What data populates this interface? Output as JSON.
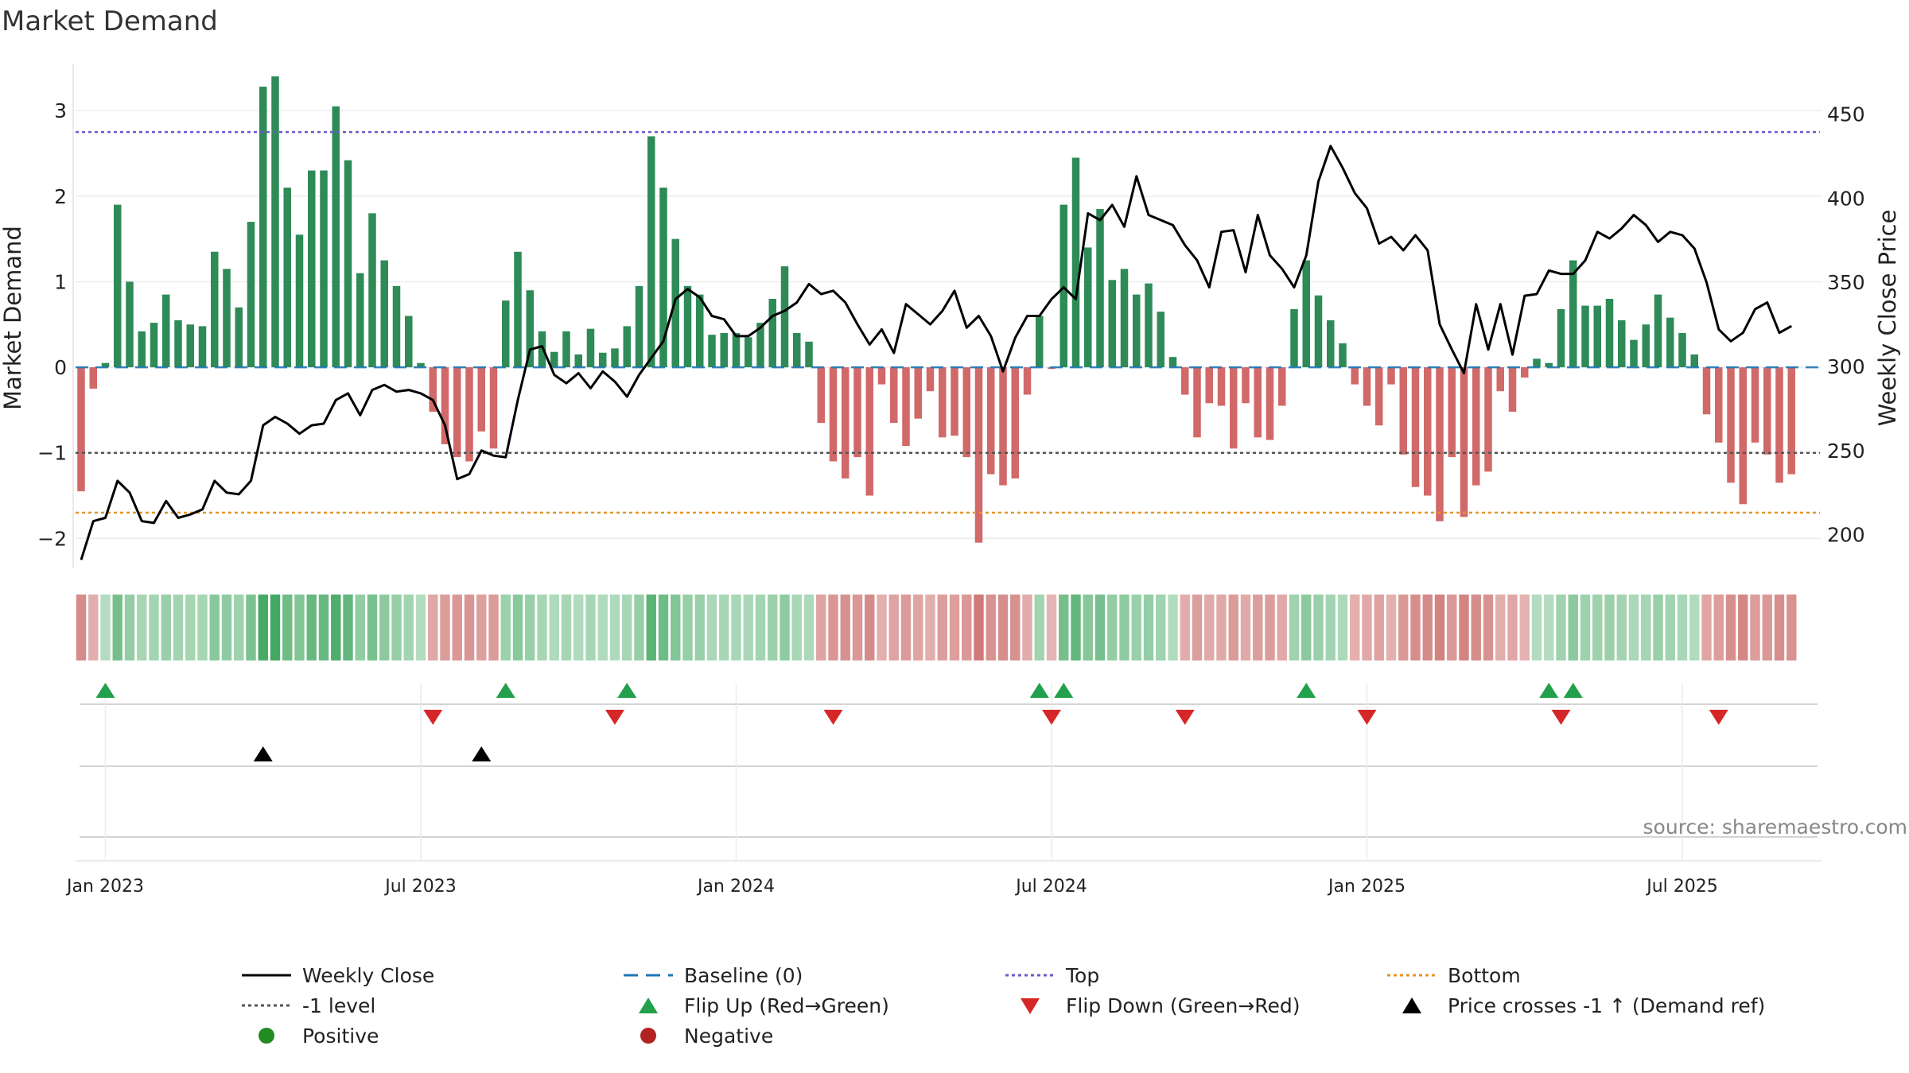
{
  "chart_data": {
    "type": "bar",
    "title": "Market Demand",
    "ylabel": "Market Demand",
    "y2label": "Weekly Close Price",
    "ylim": [
      -2.35,
      3.55
    ],
    "y2lim": [
      180,
      480
    ],
    "yticks": [
      -2,
      -1,
      0,
      1,
      2,
      3
    ],
    "yticklabels": [
      "−2",
      "−1",
      "0",
      "1",
      "2",
      "3"
    ],
    "y2ticks": [
      200,
      250,
      300,
      350,
      400,
      450
    ],
    "y2ticklabels": [
      "200",
      "250",
      "300",
      "350",
      "400",
      "450"
    ],
    "xticks": [
      2,
      28,
      54,
      80,
      106,
      132
    ],
    "xticklabels": [
      "Jan 2023",
      "Jul 2023",
      "Jan 2024",
      "Jul 2024",
      "Jan 2025",
      "Jul 2025"
    ],
    "reference_lines": {
      "baseline": 0,
      "top": 2.75,
      "bottom": -1.7,
      "minus_one": -1
    },
    "colors": {
      "positive": "#2e8b57",
      "negative": "#cd5c5c",
      "top": "#6a5acd",
      "bottom": "#e69528",
      "baseline": "#1f77b4",
      "minus_one": "#555555",
      "flip_up": "#22a04b",
      "flip_down": "#d62728",
      "cross": "#000000",
      "close": "#000000"
    },
    "demand": [
      -1.45,
      -0.25,
      0.05,
      1.9,
      1.0,
      0.42,
      0.52,
      0.85,
      0.55,
      0.5,
      0.48,
      1.35,
      1.15,
      0.7,
      1.7,
      3.28,
      3.4,
      2.1,
      1.55,
      2.3,
      2.3,
      3.05,
      2.42,
      1.1,
      1.8,
      1.25,
      0.95,
      0.6,
      0.05,
      -0.52,
      -0.9,
      -1.05,
      -1.1,
      -0.75,
      -0.95,
      0.78,
      1.35,
      0.9,
      0.42,
      0.18,
      0.42,
      0.15,
      0.45,
      0.17,
      0.22,
      0.48,
      0.95,
      2.7,
      2.1,
      1.5,
      0.95,
      0.85,
      0.38,
      0.4,
      0.4,
      0.35,
      0.52,
      0.8,
      1.18,
      0.4,
      0.3,
      -0.65,
      -1.1,
      -1.3,
      -1.05,
      -1.5,
      -0.2,
      -0.65,
      -0.92,
      -0.6,
      -0.28,
      -0.82,
      -0.8,
      -1.05,
      -2.05,
      -1.25,
      -1.38,
      -1.3,
      -0.32,
      0.6,
      -0.02,
      1.9,
      2.45,
      1.4,
      1.85,
      1.02,
      1.15,
      0.85,
      0.98,
      0.65,
      0.12,
      -0.32,
      -0.82,
      -0.42,
      -0.45,
      -0.95,
      -0.42,
      -0.82,
      -0.85,
      -0.45,
      0.68,
      1.25,
      0.84,
      0.55,
      0.28,
      -0.2,
      -0.45,
      -0.68,
      -0.2,
      -1.02,
      -1.4,
      -1.5,
      -1.8,
      -1.05,
      -1.75,
      -1.38,
      -1.22,
      -0.28,
      -0.52,
      -0.12,
      0.1,
      0.05,
      0.68,
      1.25,
      0.72,
      0.72,
      0.8,
      0.55,
      0.32,
      0.5,
      0.85,
      0.58,
      0.4,
      0.15,
      -0.55,
      -0.88,
      -1.35,
      -1.6,
      -0.88,
      -1.02,
      -1.35,
      -1.25
    ],
    "close": [
      185,
      208,
      210,
      232,
      225,
      208,
      207,
      220,
      210,
      212,
      215,
      232,
      225,
      224,
      232,
      265,
      270,
      266,
      260,
      265,
      266,
      280,
      284,
      271,
      286,
      289,
      285,
      286,
      284,
      280,
      265,
      233,
      236,
      250,
      247,
      246,
      280,
      310,
      312,
      295,
      290,
      296,
      287,
      297,
      291,
      282,
      295,
      305,
      315,
      340,
      346,
      341,
      330,
      328,
      318,
      318,
      323,
      330,
      333,
      338,
      349,
      343,
      345,
      338,
      325,
      313,
      322,
      308,
      337,
      331,
      325,
      333,
      345,
      323,
      330,
      318,
      297,
      317,
      330,
      330,
      340,
      347,
      340,
      391,
      387,
      396,
      383,
      413,
      390,
      387,
      384,
      372,
      363,
      347,
      380,
      381,
      356,
      390,
      366,
      358,
      347,
      366,
      410,
      431,
      418,
      403,
      394,
      373,
      377,
      369,
      378,
      369,
      325,
      310,
      296,
      337,
      310,
      337,
      307,
      342,
      343,
      357,
      355,
      355,
      363,
      380,
      376,
      382,
      390,
      384,
      374,
      380,
      378,
      370,
      350,
      322,
      315,
      320,
      334,
      338,
      320,
      324
    ],
    "flip_up_idx": [
      2,
      35,
      45,
      79,
      81,
      101,
      121,
      123
    ],
    "flip_down_idx": [
      29,
      44,
      62,
      80,
      91,
      106,
      122,
      135
    ],
    "cross_idx": [
      15,
      33
    ],
    "source": "source: sharemaestro.com",
    "legend": [
      [
        {
          "key": "weekly_close",
          "label": "Weekly Close"
        },
        {
          "key": "baseline",
          "label": "Baseline (0)"
        },
        {
          "key": "top",
          "label": "Top"
        },
        {
          "key": "bottom",
          "label": "Bottom"
        }
      ],
      [
        {
          "key": "minus_one",
          "label": "-1 level"
        },
        {
          "key": "flip_up",
          "label": "Flip Up (Red→Green)"
        },
        {
          "key": "flip_down",
          "label": "Flip Down (Green→Red)"
        },
        {
          "key": "cross",
          "label": "Price crosses -1 ↑ (Demand ref)"
        }
      ],
      [
        {
          "key": "positive",
          "label": "Positive"
        },
        {
          "key": "negative",
          "label": "Negative"
        }
      ]
    ]
  }
}
